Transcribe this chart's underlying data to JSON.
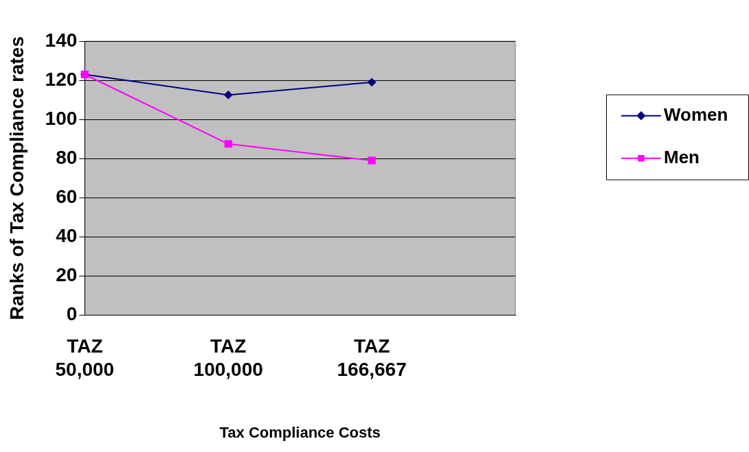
{
  "chart_data": {
    "type": "line",
    "xlabel": "Tax Compliance Costs",
    "ylabel": "Ranks of Tax Compliance rates",
    "categories": [
      "TAZ 50,000",
      "TAZ 100,000",
      "TAZ 166,667",
      null
    ],
    "series": [
      {
        "name": "Women",
        "color": "#000080",
        "marker": "diamond",
        "values": [
          123,
          112.5,
          119,
          null
        ]
      },
      {
        "name": "Men",
        "color": "#ff00ff",
        "marker": "square",
        "values": [
          123,
          87.5,
          79,
          null
        ]
      }
    ],
    "ylim": [
      0,
      140
    ],
    "yticks": [
      0,
      20,
      40,
      60,
      80,
      100,
      120,
      140
    ],
    "grid": "y",
    "legend": "right"
  }
}
